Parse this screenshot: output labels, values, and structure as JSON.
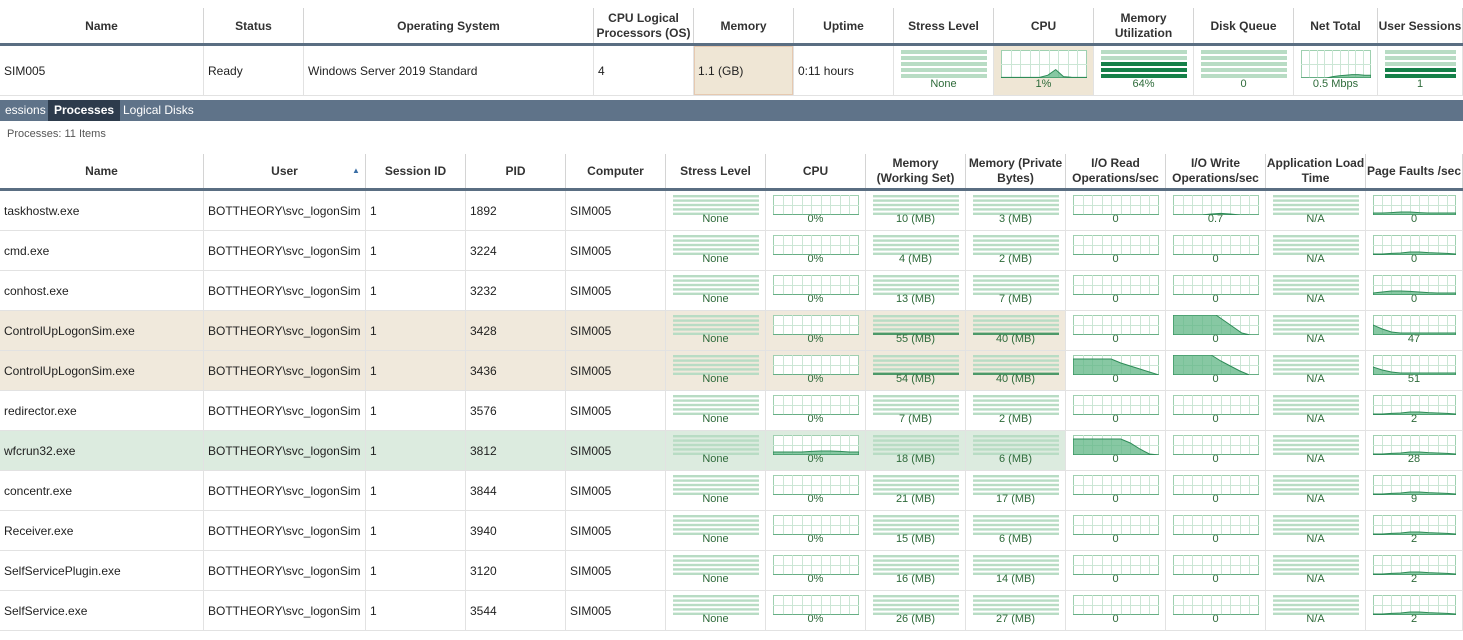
{
  "summary": {
    "headers": [
      "Name",
      "Status",
      "Operating System",
      "CPU Logical Processors (OS)",
      "Memory",
      "Uptime",
      "Stress Level",
      "CPU",
      "Memory Utilization",
      "Disk Queue",
      "Net Total",
      "User Sessions"
    ],
    "row": {
      "name": "SIM005",
      "status": "Ready",
      "os": "Windows Server 2019 Standard",
      "cpu_logical": "4",
      "memory": "1.1 (GB)",
      "uptime": "0:11 hours",
      "stress": "None",
      "cpu": "1%",
      "mem_util": "64%",
      "disk_queue": "0",
      "net_total": "0.5 Mbps",
      "user_sessions": "1"
    }
  },
  "tabs": [
    "essions",
    "Processes",
    "Logical Disks"
  ],
  "active_tab": "Processes",
  "process_count": "Processes: 11 Items",
  "process_headers": [
    "Name",
    "User",
    "Session ID",
    "PID",
    "Computer",
    "Stress Level",
    "CPU",
    "Memory (Working Set)",
    "Memory (Private Bytes)",
    "I/O Read Operations/sec",
    "I/O Write Operations/sec",
    "Application Load Time",
    "Page Faults /sec"
  ],
  "processes": [
    {
      "name": "taskhostw.exe",
      "user": "BOTTHEORY\\svc_logonSim",
      "session": "1",
      "pid": "1892",
      "computer": "SIM005",
      "stress": "None",
      "cpu": "0%",
      "ws": "10 (MB)",
      "pb": "3 (MB)",
      "ior": "0",
      "iow": "0.7",
      "alt": "N/A",
      "pf": "0"
    },
    {
      "name": "cmd.exe",
      "user": "BOTTHEORY\\svc_logonSim",
      "session": "1",
      "pid": "3224",
      "computer": "SIM005",
      "stress": "None",
      "cpu": "0%",
      "ws": "4 (MB)",
      "pb": "2 (MB)",
      "ior": "0",
      "iow": "0",
      "alt": "N/A",
      "pf": "0"
    },
    {
      "name": "conhost.exe",
      "user": "BOTTHEORY\\svc_logonSim",
      "session": "1",
      "pid": "3232",
      "computer": "SIM005",
      "stress": "None",
      "cpu": "0%",
      "ws": "13 (MB)",
      "pb": "7 (MB)",
      "ior": "0",
      "iow": "0",
      "alt": "N/A",
      "pf": "0"
    },
    {
      "name": "ControlUpLogonSim.exe",
      "user": "BOTTHEORY\\svc_logonSim",
      "session": "1",
      "pid": "3428",
      "computer": "SIM005",
      "stress": "None",
      "cpu": "0%",
      "ws": "55 (MB)",
      "pb": "40 (MB)",
      "ior": "0",
      "iow": "0",
      "alt": "N/A",
      "pf": "47"
    },
    {
      "name": "ControlUpLogonSim.exe",
      "user": "BOTTHEORY\\svc_logonSim",
      "session": "1",
      "pid": "3436",
      "computer": "SIM005",
      "stress": "None",
      "cpu": "0%",
      "ws": "54 (MB)",
      "pb": "40 (MB)",
      "ior": "0",
      "iow": "0",
      "alt": "N/A",
      "pf": "51"
    },
    {
      "name": "redirector.exe",
      "user": "BOTTHEORY\\svc_logonSim",
      "session": "1",
      "pid": "3576",
      "computer": "SIM005",
      "stress": "None",
      "cpu": "0%",
      "ws": "7 (MB)",
      "pb": "2 (MB)",
      "ior": "0",
      "iow": "0",
      "alt": "N/A",
      "pf": "2"
    },
    {
      "name": "wfcrun32.exe",
      "user": "BOTTHEORY\\svc_logonSim",
      "session": "1",
      "pid": "3812",
      "computer": "SIM005",
      "stress": "None",
      "cpu": "0%",
      "ws": "18 (MB)",
      "pb": "6 (MB)",
      "ior": "0",
      "iow": "0",
      "alt": "N/A",
      "pf": "28"
    },
    {
      "name": "concentr.exe",
      "user": "BOTTHEORY\\svc_logonSim",
      "session": "1",
      "pid": "3844",
      "computer": "SIM005",
      "stress": "None",
      "cpu": "0%",
      "ws": "21 (MB)",
      "pb": "17 (MB)",
      "ior": "0",
      "iow": "0",
      "alt": "N/A",
      "pf": "9"
    },
    {
      "name": "Receiver.exe",
      "user": "BOTTHEORY\\svc_logonSim",
      "session": "1",
      "pid": "3940",
      "computer": "SIM005",
      "stress": "None",
      "cpu": "0%",
      "ws": "15 (MB)",
      "pb": "6 (MB)",
      "ior": "0",
      "iow": "0",
      "alt": "N/A",
      "pf": "2"
    },
    {
      "name": "SelfServicePlugin.exe",
      "user": "BOTTHEORY\\svc_logonSim",
      "session": "1",
      "pid": "3120",
      "computer": "SIM005",
      "stress": "None",
      "cpu": "0%",
      "ws": "16 (MB)",
      "pb": "14 (MB)",
      "ior": "0",
      "iow": "0",
      "alt": "N/A",
      "pf": "2"
    },
    {
      "name": "SelfService.exe",
      "user": "BOTTHEORY\\svc_logonSim",
      "session": "1",
      "pid": "3544",
      "computer": "SIM005",
      "stress": "None",
      "cpu": "0%",
      "ws": "26 (MB)",
      "pb": "27 (MB)",
      "ior": "0",
      "iow": "0",
      "alt": "N/A",
      "pf": "2"
    }
  ],
  "colors": {
    "header_line": "#5a6e82",
    "tab_bar": "#5f7389",
    "tab_active": "#2d3b4c",
    "warn_row": "#f0e9dc",
    "ok_row": "#dcebdf",
    "graph_green": "#2e8b57"
  }
}
